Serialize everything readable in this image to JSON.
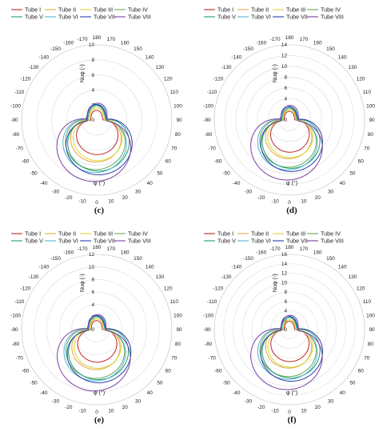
{
  "colors": {
    "Tube I": "#c1272d",
    "Tube II": "#e8a33d",
    "Tube III": "#d9d93a",
    "Tube IV": "#6aa84f",
    "Tube V": "#1b9e77",
    "Tube VI": "#4fb3d9",
    "Tube VII": "#2c3fa8",
    "Tube VIII": "#7b3fa0"
  },
  "chart_data": [
    {
      "type": "polar-line",
      "caption": "(c)",
      "r_label": "Nuφ (-)",
      "theta_label": "φ (°)",
      "rlim": [
        0,
        10
      ],
      "r_ticks": [
        0,
        2,
        4,
        6,
        8,
        10
      ],
      "theta_ticks": [
        0,
        10,
        20,
        30,
        40,
        50,
        60,
        70,
        80,
        90,
        100,
        110,
        120,
        130,
        140,
        150,
        160,
        170,
        180,
        -170,
        -160,
        -150,
        -140,
        -130,
        -120,
        -110,
        -100,
        -90,
        -80,
        -70,
        -60,
        -50,
        -40,
        -30,
        -20,
        -10
      ],
      "legend": "top",
      "series": [
        {
          "name": "Tube I",
          "peak_front": 4.6,
          "peak_back": 0.8
        },
        {
          "name": "Tube II",
          "peak_front": 5.6,
          "peak_back": 1.0
        },
        {
          "name": "Tube III",
          "peak_front": 5.4,
          "peak_back": 1.0
        },
        {
          "name": "Tube IV",
          "peak_front": 6.6,
          "peak_back": 1.2
        },
        {
          "name": "Tube V",
          "peak_front": 6.8,
          "peak_back": 1.2
        },
        {
          "name": "Tube VI",
          "peak_front": 7.0,
          "peak_back": 1.3
        },
        {
          "name": "Tube VII",
          "peak_front": 7.3,
          "peak_back": 1.3
        },
        {
          "name": "Tube VIII",
          "peak_front": 8.2,
          "peak_back": 1.4
        }
      ]
    },
    {
      "type": "polar-line",
      "caption": "(d)",
      "r_label": "Nuφ (-)",
      "theta_label": "φ (°)",
      "rlim": [
        0,
        14
      ],
      "r_ticks": [
        0,
        2,
        4,
        6,
        8,
        10,
        12,
        14
      ],
      "theta_ticks": [
        0,
        10,
        20,
        30,
        40,
        50,
        60,
        70,
        80,
        90,
        100,
        110,
        120,
        130,
        140,
        150,
        160,
        170,
        180,
        -170,
        -160,
        -150,
        -140,
        -130,
        -120,
        -110,
        -100,
        -90,
        -80,
        -70,
        -60,
        -50,
        -40,
        -30,
        -20,
        -10
      ],
      "legend": "top",
      "series": [
        {
          "name": "Tube I",
          "peak_front": 6.0,
          "peak_back": 1.0
        },
        {
          "name": "Tube II",
          "peak_front": 7.2,
          "peak_back": 1.2
        },
        {
          "name": "Tube III",
          "peak_front": 7.0,
          "peak_back": 1.2
        },
        {
          "name": "Tube IV",
          "peak_front": 8.8,
          "peak_back": 1.4
        },
        {
          "name": "Tube V",
          "peak_front": 9.0,
          "peak_back": 1.4
        },
        {
          "name": "Tube VI",
          "peak_front": 9.3,
          "peak_back": 1.5
        },
        {
          "name": "Tube VII",
          "peak_front": 9.6,
          "peak_back": 1.6
        },
        {
          "name": "Tube VIII",
          "peak_front": 11.2,
          "peak_back": 1.7
        }
      ]
    },
    {
      "type": "polar-line",
      "caption": "(e)",
      "r_label": "Nuφ (-)",
      "theta_label": "φ (°)",
      "rlim": [
        0,
        12
      ],
      "r_ticks": [
        0,
        2,
        4,
        6,
        8,
        10,
        12
      ],
      "theta_ticks": [
        0,
        10,
        20,
        30,
        40,
        50,
        60,
        70,
        80,
        90,
        100,
        110,
        120,
        130,
        140,
        150,
        160,
        170,
        180,
        -170,
        -160,
        -150,
        -140,
        -130,
        -120,
        -110,
        -100,
        -90,
        -80,
        -70,
        -60,
        -50,
        -40,
        -30,
        -20,
        -10
      ],
      "legend": "top",
      "series": [
        {
          "name": "Tube I",
          "peak_front": 5.2,
          "peak_back": 0.9
        },
        {
          "name": "Tube II",
          "peak_front": 6.4,
          "peak_back": 1.1
        },
        {
          "name": "Tube III",
          "peak_front": 6.2,
          "peak_back": 1.1
        },
        {
          "name": "Tube IV",
          "peak_front": 7.8,
          "peak_back": 1.3
        },
        {
          "name": "Tube V",
          "peak_front": 8.0,
          "peak_back": 1.3
        },
        {
          "name": "Tube VI",
          "peak_front": 8.2,
          "peak_back": 1.4
        },
        {
          "name": "Tube VII",
          "peak_front": 8.5,
          "peak_back": 1.4
        },
        {
          "name": "Tube VIII",
          "peak_front": 9.8,
          "peak_back": 1.5
        }
      ]
    },
    {
      "type": "polar-line",
      "caption": "(f)",
      "r_label": "Nuφ (-)",
      "theta_label": "φ (°)",
      "rlim": [
        0,
        16
      ],
      "r_ticks": [
        0,
        2,
        4,
        6,
        8,
        10,
        12,
        14,
        16
      ],
      "theta_ticks": [
        0,
        10,
        20,
        30,
        40,
        50,
        60,
        70,
        80,
        90,
        100,
        110,
        120,
        130,
        140,
        150,
        160,
        170,
        180,
        -170,
        -160,
        -150,
        -140,
        -130,
        -120,
        -110,
        -100,
        -90,
        -80,
        -70,
        -60,
        -50,
        -40,
        -30,
        -20,
        -10
      ],
      "legend": "top",
      "series": [
        {
          "name": "Tube I",
          "peak_front": 6.8,
          "peak_back": 1.1
        },
        {
          "name": "Tube II",
          "peak_front": 8.2,
          "peak_back": 1.3
        },
        {
          "name": "Tube III",
          "peak_front": 8.0,
          "peak_back": 1.3
        },
        {
          "name": "Tube IV",
          "peak_front": 10.0,
          "peak_back": 1.6
        },
        {
          "name": "Tube V",
          "peak_front": 10.3,
          "peak_back": 1.6
        },
        {
          "name": "Tube VI",
          "peak_front": 10.6,
          "peak_back": 1.7
        },
        {
          "name": "Tube VII",
          "peak_front": 11.0,
          "peak_back": 1.8
        },
        {
          "name": "Tube VIII",
          "peak_front": 12.8,
          "peak_back": 1.9
        }
      ]
    }
  ]
}
